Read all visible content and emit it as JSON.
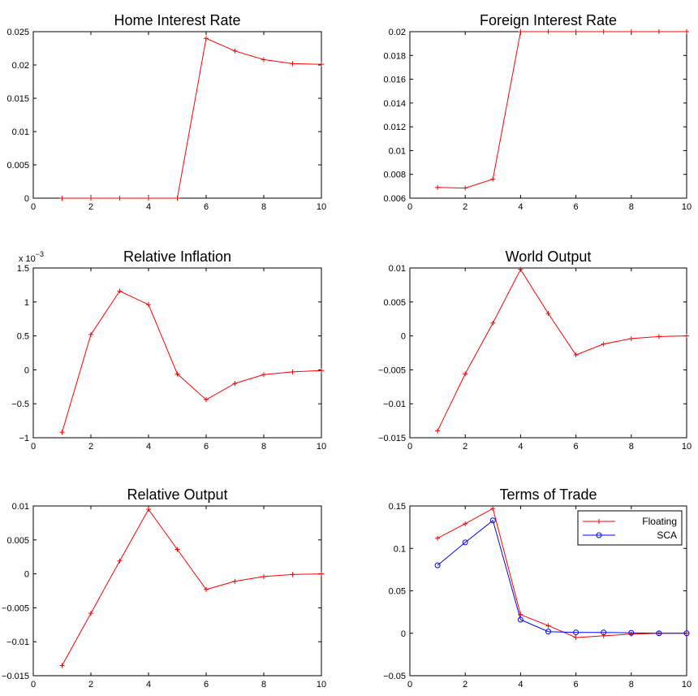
{
  "chart_data": [
    {
      "id": "home-interest-rate",
      "type": "line",
      "title": "Home Interest Rate",
      "x": [
        1,
        2,
        3,
        4,
        5,
        6,
        7,
        8,
        9,
        10
      ],
      "xlim": [
        0,
        10
      ],
      "xticks": [
        0,
        2,
        4,
        6,
        8,
        10
      ],
      "xtick_labels": [
        "0",
        "2",
        "4",
        "6",
        "8",
        "10"
      ],
      "ylim": [
        0,
        0.025
      ],
      "yticks": [
        0,
        0.005,
        0.01,
        0.015,
        0.02,
        0.025
      ],
      "ytick_labels": [
        "0",
        "0.005",
        "0.01",
        "0.015",
        "0.02",
        "0.025"
      ],
      "series": [
        {
          "values": [
            0,
            0,
            0,
            0,
            0,
            0.024,
            0.0221,
            0.0208,
            0.0202,
            0.0201
          ],
          "color": "#ff0000",
          "marker": "plus"
        }
      ]
    },
    {
      "id": "foreign-interest-rate",
      "type": "line",
      "title": "Foreign Interest Rate",
      "x": [
        1,
        2,
        3,
        4,
        5,
        6,
        7,
        8,
        9,
        10
      ],
      "xlim": [
        0,
        10
      ],
      "xticks": [
        0,
        2,
        4,
        6,
        8,
        10
      ],
      "xtick_labels": [
        "0",
        "2",
        "4",
        "6",
        "8",
        "10"
      ],
      "ylim": [
        0.006,
        0.02
      ],
      "yticks": [
        0.006,
        0.008,
        0.01,
        0.012,
        0.014,
        0.016,
        0.018,
        0.02
      ],
      "ytick_labels": [
        "0.006",
        "0.008",
        "0.01",
        "0.012",
        "0.014",
        "0.016",
        "0.018",
        "0.02"
      ],
      "series": [
        {
          "values": [
            0.0069,
            0.00685,
            0.0076,
            0.02,
            0.02,
            0.02,
            0.02,
            0.02,
            0.02,
            0.02
          ],
          "color": "#ff0000",
          "marker": "plus"
        }
      ]
    },
    {
      "id": "relative-inflation",
      "type": "line",
      "title": "Relative Inflation",
      "exponent_label": "x 10",
      "exponent_power": "−3",
      "x": [
        1,
        2,
        3,
        4,
        5,
        6,
        7,
        8,
        9,
        10
      ],
      "xlim": [
        0,
        10
      ],
      "xticks": [
        0,
        2,
        4,
        6,
        8,
        10
      ],
      "xtick_labels": [
        "0",
        "2",
        "4",
        "6",
        "8",
        "10"
      ],
      "ylim": [
        -1,
        1.5
      ],
      "yticks": [
        -1,
        -0.5,
        0,
        0.5,
        1,
        1.5
      ],
      "ytick_labels": [
        "−1",
        "−0.5",
        "0",
        "0.5",
        "1",
        "1.5"
      ],
      "series": [
        {
          "values": [
            -0.92,
            0.52,
            1.16,
            0.96,
            -0.06,
            -0.44,
            -0.2,
            -0.07,
            -0.03,
            -0.01
          ],
          "color": "#ff0000",
          "marker": "plus"
        }
      ]
    },
    {
      "id": "world-output",
      "type": "line",
      "title": "World Output",
      "x": [
        1,
        2,
        3,
        4,
        5,
        6,
        7,
        8,
        9,
        10
      ],
      "xlim": [
        0,
        10
      ],
      "xticks": [
        0,
        2,
        4,
        6,
        8,
        10
      ],
      "xtick_labels": [
        "0",
        "2",
        "4",
        "6",
        "8",
        "10"
      ],
      "ylim": [
        -0.015,
        0.01
      ],
      "yticks": [
        -0.015,
        -0.01,
        -0.005,
        0,
        0.005,
        0.01
      ],
      "ytick_labels": [
        "−0.015",
        "−0.01",
        "−0.005",
        "0",
        "0.005",
        "0.01"
      ],
      "series": [
        {
          "values": [
            -0.014,
            -0.0056,
            0.0019,
            0.0098,
            0.0033,
            -0.0028,
            -0.0012,
            -0.0004,
            -0.0001,
            0
          ],
          "color": "#ff0000",
          "marker": "plus"
        }
      ]
    },
    {
      "id": "relative-output",
      "type": "line",
      "title": "Relative Output",
      "x": [
        1,
        2,
        3,
        4,
        5,
        6,
        7,
        8,
        9,
        10
      ],
      "xlim": [
        0,
        10
      ],
      "xticks": [
        0,
        2,
        4,
        6,
        8,
        10
      ],
      "xtick_labels": [
        "0",
        "2",
        "4",
        "6",
        "8",
        "10"
      ],
      "ylim": [
        -0.015,
        0.01
      ],
      "yticks": [
        -0.015,
        -0.01,
        -0.005,
        0,
        0.005,
        0.01
      ],
      "ytick_labels": [
        "−0.015",
        "−0.01",
        "−0.005",
        "0",
        "0.005",
        "0.01"
      ],
      "series": [
        {
          "values": [
            -0.0135,
            -0.0058,
            0.0019,
            0.0095,
            0.0036,
            -0.0023,
            -0.0011,
            -0.0004,
            -0.0001,
            0
          ],
          "color": "#ff0000",
          "marker": "plus"
        }
      ]
    },
    {
      "id": "terms-of-trade",
      "type": "line",
      "title": "Terms of Trade",
      "x": [
        1,
        2,
        3,
        4,
        5,
        6,
        7,
        8,
        9,
        10
      ],
      "xlim": [
        0,
        10
      ],
      "xticks": [
        0,
        2,
        4,
        6,
        8,
        10
      ],
      "xtick_labels": [
        "0",
        "2",
        "4",
        "6",
        "8",
        "10"
      ],
      "ylim": [
        -0.05,
        0.15
      ],
      "yticks": [
        -0.05,
        0,
        0.05,
        0.1,
        0.15
      ],
      "ytick_labels": [
        "−0.05",
        "0",
        "0.05",
        "0.1",
        "0.15"
      ],
      "legend": "top-right",
      "series": [
        {
          "name": "Floating",
          "values": [
            0.112,
            0.129,
            0.147,
            0.022,
            0.009,
            -0.005,
            -0.003,
            -0.001,
            0,
            0
          ],
          "color": "#ff0000",
          "marker": "plus"
        },
        {
          "name": "SCA",
          "values": [
            0.08,
            0.107,
            0.133,
            0.016,
            0.002,
            0.001,
            0.001,
            0.0005,
            0,
            0
          ],
          "color": "#0000ff",
          "marker": "circle"
        }
      ]
    }
  ]
}
